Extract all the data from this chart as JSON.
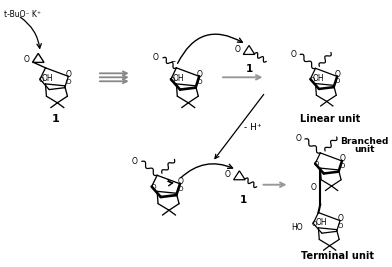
{
  "background_color": "#ffffff",
  "figsize": [
    3.92,
    2.67
  ],
  "dpi": 100,
  "xlim": [
    0,
    392
  ],
  "ylim": [
    0,
    267
  ],
  "labels": {
    "tBuO_K": "t-BuO⁻ K⁺",
    "compound_1_top": "1",
    "compound_1_mid": "1",
    "compound_1_bot": "1",
    "minus_H": "- H⁺",
    "linear_unit": "Linear unit",
    "branched_unit": "Branched\nunit",
    "terminal_unit": "Terminal unit",
    "OH": "OH",
    "HO": "HO",
    "O": "O"
  },
  "arrow_color": "#999999",
  "black": "#000000"
}
